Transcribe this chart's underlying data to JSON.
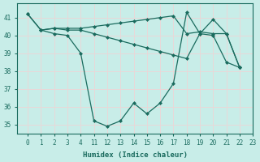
{
  "bg_color": "#c8ede8",
  "grid_color": "#dbe8e6",
  "line_color": "#1a6b5e",
  "xlabel": "Humidex (Indice chaleur)",
  "ylim": [
    34.5,
    41.8
  ],
  "yticks": [
    35,
    36,
    37,
    38,
    39,
    40,
    41
  ],
  "xtick_labels": [
    "0",
    "1",
    "2",
    "3",
    "4",
    "11",
    "12",
    "13",
    "14",
    "15",
    "16",
    "17",
    "18",
    "19",
    "20",
    "21",
    "22",
    "23"
  ],
  "x_positions": [
    0,
    1,
    2,
    3,
    4,
    5,
    6,
    7,
    8,
    9,
    10,
    11,
    12,
    13,
    14,
    15,
    16,
    17
  ],
  "line_upper": [
    41.2,
    40.3,
    40.4,
    40.4,
    40.4,
    40.5,
    40.6,
    40.7,
    40.8,
    40.9,
    41.0,
    41.1,
    40.1,
    40.2,
    40.1,
    40.1,
    38.2,
    null
  ],
  "line_mid": [
    null,
    40.3,
    40.4,
    40.3,
    40.3,
    40.1,
    39.9,
    39.7,
    39.5,
    39.3,
    39.1,
    38.9,
    38.7,
    40.1,
    40.0,
    38.5,
    38.2,
    null
  ],
  "line_lower": [
    41.2,
    40.3,
    40.1,
    40.0,
    39.0,
    35.2,
    34.9,
    35.2,
    36.2,
    35.6,
    36.2,
    37.3,
    41.3,
    40.1,
    40.9,
    40.1,
    38.2,
    null
  ]
}
